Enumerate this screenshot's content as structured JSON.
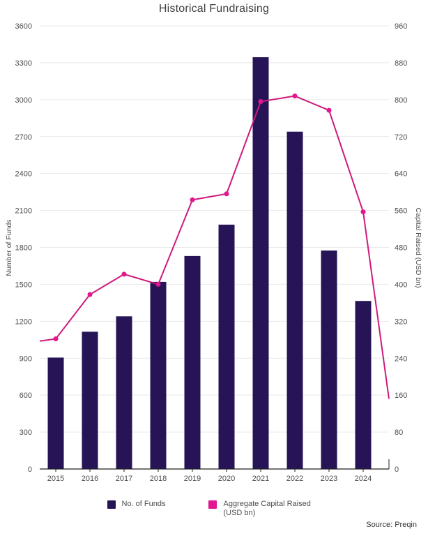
{
  "title": "Historical Fundraising",
  "source": "Source: Preqin",
  "colors": {
    "bar": "#261457",
    "line": "#cf1a7c",
    "marker": "#e2168e",
    "grid": "#e9e9e9",
    "axis": "#222222",
    "tick_text": "#4d4d4d",
    "title_text": "#3e3e3e"
  },
  "legend": [
    {
      "label": "No. of Funds",
      "color": "#261457"
    },
    {
      "label": "Aggregate Capital Raised (USD bn)",
      "color": "#e2168e"
    }
  ],
  "chart_data": {
    "type": "bar",
    "subtype": "combo-bar-line-dual-axis",
    "title": "Historical Fundraising",
    "categories": [
      "2015",
      "2016",
      "2017",
      "2018",
      "2019",
      "2020",
      "2021",
      "2022",
      "2023",
      "2024"
    ],
    "series": [
      {
        "name": "No. of Funds",
        "type": "bar",
        "axis": "left",
        "color": "#261457",
        "values": [
          905,
          1115,
          1240,
          1520,
          1730,
          1985,
          3345,
          2740,
          1775,
          1365
        ]
      },
      {
        "name": "Aggregate Capital Raised (USD bn)",
        "type": "line",
        "axis": "right",
        "color": "#cf1a7c",
        "marker_color": "#e2168e",
        "values": [
          282,
          378,
          422,
          400,
          583,
          596,
          796,
          808,
          777,
          557
        ],
        "edge_start": 277,
        "edge_end": 152
      }
    ],
    "left_axis": {
      "label": "Number of Funds",
      "min": 0,
      "max": 3600,
      "step": 300
    },
    "right_axis": {
      "label": "Capital Raised (USD bn)",
      "min": 0,
      "max": 960,
      "step": 80
    },
    "grid": true,
    "legend_position": "bottom",
    "source": "Source: Preqin"
  }
}
